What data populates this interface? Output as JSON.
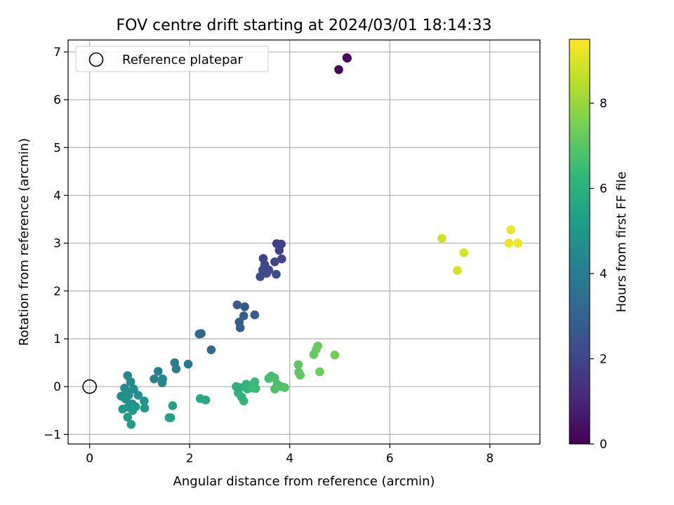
{
  "chart_data": {
    "type": "scatter",
    "title": "FOV centre drift starting at 2024/03/01 18:14:33",
    "xlabel": "Angular distance from reference (arcmin)",
    "ylabel": "Rotation from reference (arcmin)",
    "xlim": [
      -0.43,
      9.0
    ],
    "ylim": [
      -1.2,
      7.25
    ],
    "x_ticks": [
      0,
      2,
      4,
      6,
      8
    ],
    "y_ticks": [
      -1,
      0,
      1,
      2,
      3,
      4,
      5,
      6,
      7
    ],
    "grid": true,
    "legend": {
      "placement": "top-left",
      "entries": [
        {
          "label": "Reference platepar",
          "marker": "open-circle"
        }
      ]
    },
    "reference_point": {
      "x": 0,
      "y": 0
    },
    "colorbar": {
      "label": "Hours from first FF file",
      "colormap": "viridis",
      "range": [
        0,
        9.5
      ],
      "ticks": [
        0,
        2,
        4,
        6,
        8
      ]
    },
    "points": [
      {
        "x": 4.98,
        "y": 6.63,
        "c": 0.1
      },
      {
        "x": 5.14,
        "y": 6.88,
        "c": 0.3
      },
      {
        "x": 5.15,
        "y": 6.87,
        "c": 0.2
      },
      {
        "x": 3.74,
        "y": 2.99,
        "c": 1.8
      },
      {
        "x": 3.83,
        "y": 2.98,
        "c": 1.8
      },
      {
        "x": 3.79,
        "y": 2.85,
        "c": 1.9
      },
      {
        "x": 3.84,
        "y": 2.67,
        "c": 1.9
      },
      {
        "x": 3.7,
        "y": 2.61,
        "c": 2.0
      },
      {
        "x": 3.47,
        "y": 2.68,
        "c": 2.0
      },
      {
        "x": 3.5,
        "y": 2.55,
        "c": 2.1
      },
      {
        "x": 3.46,
        "y": 2.44,
        "c": 2.1
      },
      {
        "x": 3.58,
        "y": 2.44,
        "c": 2.1
      },
      {
        "x": 3.54,
        "y": 2.37,
        "c": 2.2
      },
      {
        "x": 3.41,
        "y": 2.3,
        "c": 2.2
      },
      {
        "x": 3.73,
        "y": 2.35,
        "c": 2.3
      },
      {
        "x": 2.95,
        "y": 1.71,
        "c": 2.7
      },
      {
        "x": 3.1,
        "y": 1.67,
        "c": 2.7
      },
      {
        "x": 3.08,
        "y": 1.48,
        "c": 2.8
      },
      {
        "x": 3.3,
        "y": 1.5,
        "c": 2.8
      },
      {
        "x": 2.99,
        "y": 1.35,
        "c": 2.9
      },
      {
        "x": 3.01,
        "y": 1.23,
        "c": 2.9
      },
      {
        "x": 2.19,
        "y": 1.1,
        "c": 3.2
      },
      {
        "x": 2.23,
        "y": 1.11,
        "c": 3.2
      },
      {
        "x": 2.43,
        "y": 0.77,
        "c": 3.3
      },
      {
        "x": 1.97,
        "y": 0.47,
        "c": 3.8
      },
      {
        "x": 1.7,
        "y": 0.5,
        "c": 4.0
      },
      {
        "x": 1.73,
        "y": 0.37,
        "c": 4.0
      },
      {
        "x": 1.37,
        "y": 0.32,
        "c": 4.1
      },
      {
        "x": 1.29,
        "y": 0.16,
        "c": 4.2
      },
      {
        "x": 1.46,
        "y": 0.16,
        "c": 4.2
      },
      {
        "x": 1.45,
        "y": 0.08,
        "c": 4.3
      },
      {
        "x": 0.76,
        "y": 0.23,
        "c": 4.4
      },
      {
        "x": 0.82,
        "y": 0.1,
        "c": 4.5
      },
      {
        "x": 0.7,
        "y": -0.03,
        "c": 4.5
      },
      {
        "x": 0.88,
        "y": -0.05,
        "c": 4.6
      },
      {
        "x": 0.74,
        "y": -0.1,
        "c": 4.6
      },
      {
        "x": 0.63,
        "y": -0.2,
        "c": 4.7
      },
      {
        "x": 0.78,
        "y": -0.18,
        "c": 4.7
      },
      {
        "x": 0.97,
        "y": -0.18,
        "c": 4.8
      },
      {
        "x": 0.72,
        "y": -0.26,
        "c": 4.8
      },
      {
        "x": 1.09,
        "y": -0.3,
        "c": 4.9
      },
      {
        "x": 0.85,
        "y": -0.36,
        "c": 4.9
      },
      {
        "x": 0.77,
        "y": -0.43,
        "c": 5.0
      },
      {
        "x": 0.92,
        "y": -0.42,
        "c": 5.0
      },
      {
        "x": 1.1,
        "y": -0.45,
        "c": 5.0
      },
      {
        "x": 0.66,
        "y": -0.47,
        "c": 5.1
      },
      {
        "x": 0.86,
        "y": -0.5,
        "c": 5.1
      },
      {
        "x": 0.76,
        "y": -0.64,
        "c": 5.2
      },
      {
        "x": 0.83,
        "y": -0.79,
        "c": 5.2
      },
      {
        "x": 1.66,
        "y": -0.4,
        "c": 5.4
      },
      {
        "x": 1.59,
        "y": -0.65,
        "c": 5.4
      },
      {
        "x": 1.62,
        "y": -0.65,
        "c": 5.4
      },
      {
        "x": 2.21,
        "y": -0.25,
        "c": 5.7
      },
      {
        "x": 2.32,
        "y": -0.28,
        "c": 5.7
      },
      {
        "x": 2.93,
        "y": 0.0,
        "c": 6.0
      },
      {
        "x": 3.0,
        "y": -0.02,
        "c": 6.0
      },
      {
        "x": 2.97,
        "y": -0.13,
        "c": 6.1
      },
      {
        "x": 3.04,
        "y": -0.22,
        "c": 6.1
      },
      {
        "x": 3.08,
        "y": -0.3,
        "c": 6.2
      },
      {
        "x": 3.13,
        "y": 0.05,
        "c": 6.2
      },
      {
        "x": 3.15,
        "y": -0.05,
        "c": 6.3
      },
      {
        "x": 3.2,
        "y": 0.02,
        "c": 6.3
      },
      {
        "x": 3.26,
        "y": -0.03,
        "c": 6.4
      },
      {
        "x": 3.3,
        "y": 0.1,
        "c": 6.4
      },
      {
        "x": 3.32,
        "y": -0.04,
        "c": 6.5
      },
      {
        "x": 3.58,
        "y": 0.17,
        "c": 6.6
      },
      {
        "x": 3.63,
        "y": 0.22,
        "c": 6.6
      },
      {
        "x": 3.7,
        "y": 0.18,
        "c": 6.7
      },
      {
        "x": 3.75,
        "y": 0.05,
        "c": 6.7
      },
      {
        "x": 3.7,
        "y": -0.05,
        "c": 6.8
      },
      {
        "x": 3.83,
        "y": 0.0,
        "c": 6.8
      },
      {
        "x": 3.9,
        "y": -0.02,
        "c": 6.9
      },
      {
        "x": 4.17,
        "y": 0.46,
        "c": 7.0
      },
      {
        "x": 4.18,
        "y": 0.3,
        "c": 7.0
      },
      {
        "x": 4.21,
        "y": 0.24,
        "c": 7.1
      },
      {
        "x": 4.48,
        "y": 0.67,
        "c": 7.2
      },
      {
        "x": 4.53,
        "y": 0.78,
        "c": 7.2
      },
      {
        "x": 4.56,
        "y": 0.85,
        "c": 7.3
      },
      {
        "x": 4.6,
        "y": 0.31,
        "c": 7.3
      },
      {
        "x": 4.9,
        "y": 0.66,
        "c": 7.4
      },
      {
        "x": 7.04,
        "y": 3.1,
        "c": 8.8
      },
      {
        "x": 7.48,
        "y": 2.8,
        "c": 8.9
      },
      {
        "x": 7.35,
        "y": 2.43,
        "c": 8.9
      },
      {
        "x": 8.42,
        "y": 3.28,
        "c": 9.2
      },
      {
        "x": 8.38,
        "y": 3.0,
        "c": 9.2
      },
      {
        "x": 8.56,
        "y": 3.0,
        "c": 9.3
      }
    ]
  }
}
